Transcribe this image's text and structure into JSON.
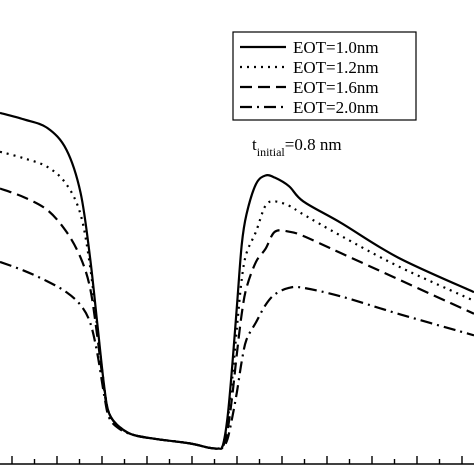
{
  "chart_data": {
    "type": "line",
    "title": "",
    "xlabel": "",
    "ylabel": "",
    "xlim": [
      0,
      100
    ],
    "ylim": [
      0,
      100
    ],
    "grid": false,
    "legend_placement": "top-right",
    "series": [
      {
        "name": "EOT=1.0nm",
        "dash": "solid",
        "x": [
          0,
          5,
          10,
          14,
          17,
          19,
          20.5,
          22,
          23,
          25,
          28,
          33,
          40,
          44,
          46,
          47,
          48,
          49,
          50,
          51,
          52,
          54,
          56,
          58,
          61,
          64,
          72,
          84,
          100
        ],
        "y": [
          78.5,
          77,
          75,
          70,
          60,
          45,
          30,
          15,
          9,
          6,
          4,
          3,
          2,
          1,
          0.8,
          1.5,
          8,
          20,
          34,
          48,
          55,
          62,
          64,
          63.5,
          61.5,
          58,
          53,
          45,
          37
        ]
      },
      {
        "name": "EOT=1.2nm",
        "dash": "dotted",
        "x": [
          0,
          5,
          10,
          14,
          17,
          19,
          20.5,
          22,
          23,
          25,
          28,
          33,
          40,
          44,
          46,
          47,
          48,
          49,
          50,
          51,
          52,
          54,
          56,
          58,
          61,
          64,
          72,
          84,
          100
        ],
        "y": [
          69.5,
          68,
          66,
          62,
          55,
          43,
          29,
          15,
          9,
          6,
          4,
          3,
          2,
          1,
          0.8,
          1.5,
          7,
          17,
          29,
          40,
          46,
          51,
          57,
          58,
          57,
          55,
          50,
          43,
          35
        ]
      },
      {
        "name": "EOT=1.6nm",
        "dash": "dashed",
        "x": [
          0,
          5,
          10,
          14,
          17,
          19,
          20.5,
          22,
          23,
          25,
          28,
          33,
          40,
          44,
          46,
          47,
          48,
          49,
          50,
          51,
          52,
          54,
          56,
          58,
          61,
          64,
          72,
          84,
          100
        ],
        "y": [
          61,
          59,
          56,
          51,
          45,
          38,
          27,
          14,
          9,
          6,
          4,
          3,
          2,
          1,
          0.8,
          1.2,
          5,
          13,
          23,
          32,
          38,
          44,
          47,
          51,
          51,
          50,
          46,
          40,
          32
        ]
      },
      {
        "name": "EOT=2.0nm",
        "dash": "dashdot",
        "x": [
          0,
          5,
          10,
          14,
          17,
          19,
          20.5,
          22,
          23,
          25,
          28,
          33,
          40,
          44,
          46,
          47,
          48,
          49,
          50,
          51,
          52,
          54,
          56,
          58,
          61,
          64,
          72,
          84,
          100
        ],
        "y": [
          44,
          42,
          39.5,
          37,
          34,
          30,
          23,
          13,
          8,
          5.5,
          4,
          3,
          2,
          1,
          0.8,
          1,
          3,
          8,
          14,
          21,
          26,
          30,
          34,
          36.5,
          38,
          38,
          36,
          32,
          27
        ]
      }
    ],
    "annotations": [
      {
        "prefix": "t",
        "subscript": "initial",
        "suffix": "=0.8 nm"
      }
    ]
  }
}
